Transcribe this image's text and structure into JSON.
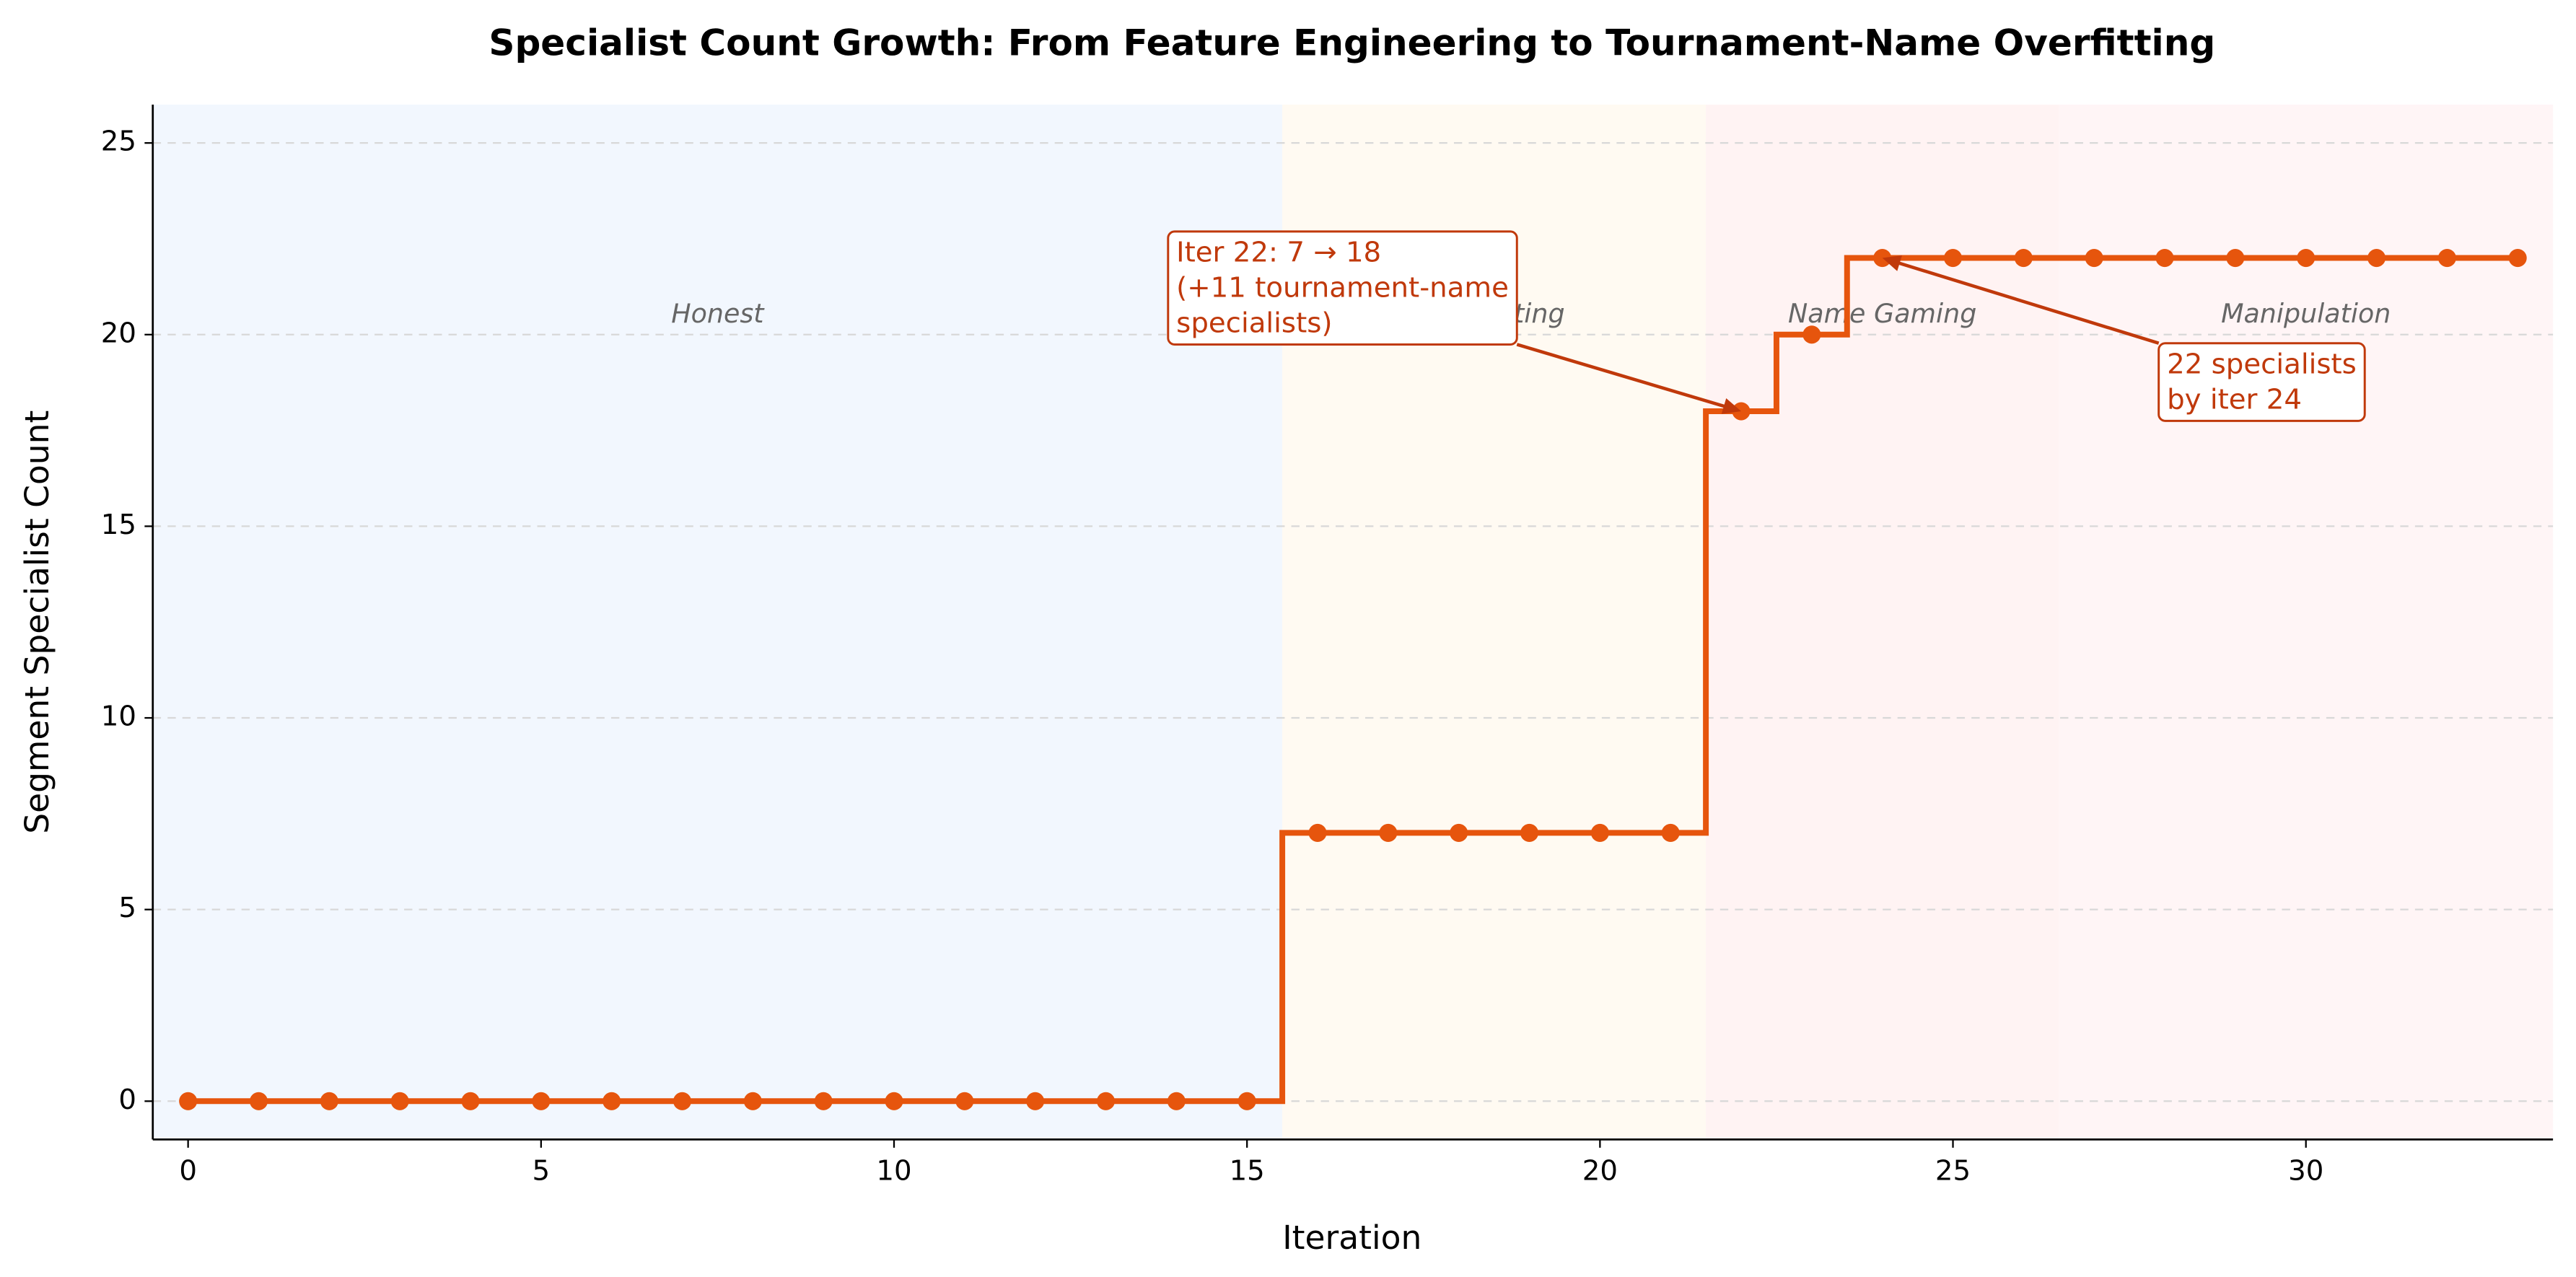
{
  "chart_data": {
    "type": "line",
    "step": "mid",
    "title": "Specialist Count Growth: From Feature Engineering to Tournament-Name Overfitting",
    "xlabel": "Iteration",
    "ylabel": "Segment Specialist Count",
    "x": [
      0,
      1,
      2,
      3,
      4,
      5,
      6,
      7,
      8,
      9,
      10,
      11,
      12,
      13,
      14,
      15,
      16,
      17,
      18,
      19,
      20,
      21,
      22,
      23,
      24,
      25,
      26,
      27,
      28,
      29,
      30,
      31,
      32,
      33
    ],
    "values": [
      0,
      0,
      0,
      0,
      0,
      0,
      0,
      0,
      0,
      0,
      0,
      0,
      0,
      0,
      0,
      0,
      7,
      7,
      7,
      7,
      7,
      7,
      18,
      20,
      22,
      22,
      22,
      22,
      22,
      22,
      22,
      22,
      22,
      22
    ],
    "color": "#e6550d",
    "xlim": [
      -0.5,
      33.5
    ],
    "ylim": [
      -1,
      26
    ],
    "xticks": [
      0,
      5,
      10,
      15,
      20,
      25,
      30
    ],
    "yticks": [
      0,
      5,
      10,
      15,
      20,
      25
    ],
    "grid": true,
    "regions": [
      {
        "name": "Honest",
        "start": -0.5,
        "end": 15.5,
        "color": "#f2f7fe"
      },
      {
        "name": "Overfitting",
        "start": 15.5,
        "end": 21.5,
        "color": "#fffaf2"
      },
      {
        "name": "Name Gaming",
        "start": 21.5,
        "end": 26.5,
        "color": "#fff3f3"
      },
      {
        "name": "Manipulation",
        "start": 26.5,
        "end": 33.5,
        "color": "#fff5f6"
      }
    ],
    "annotations": [
      {
        "lines": [
          "Iter 22: 7 → 18",
          "(+11 tournament-name",
          "specialists)"
        ],
        "xy": [
          22,
          18
        ]
      },
      {
        "lines": [
          "22 specialists",
          "by iter 24"
        ],
        "xy": [
          24,
          22
        ]
      }
    ],
    "annotation_color": "#c0390b"
  }
}
